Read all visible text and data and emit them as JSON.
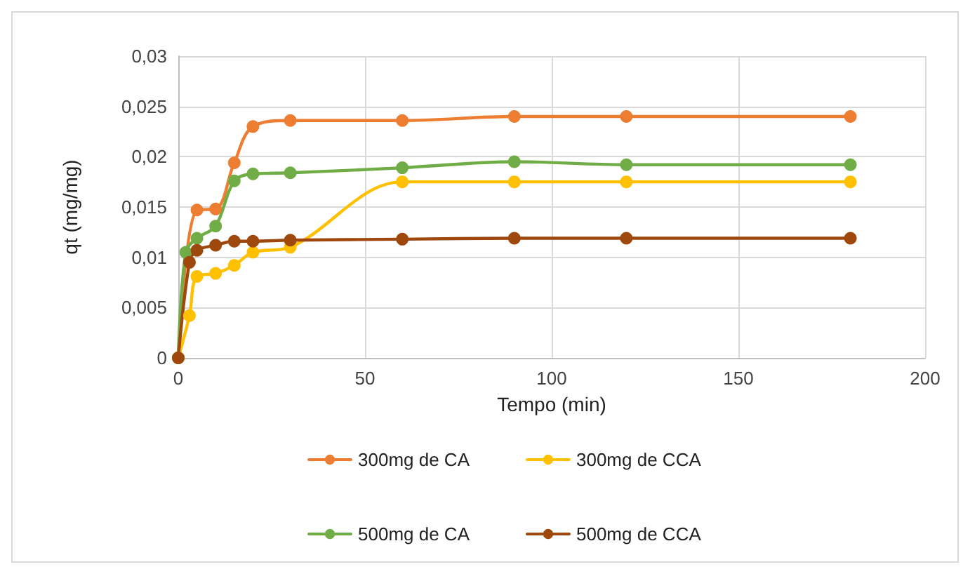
{
  "chart_data": {
    "type": "line",
    "xlabel": "Tempo (min)",
    "ylabel": "qt (mg/mg)",
    "xlim": [
      0,
      200
    ],
    "xticks": [
      0,
      50,
      100,
      150,
      200
    ],
    "ylim": [
      0,
      0.03
    ],
    "yticks": [
      {
        "value": 0,
        "label": "0"
      },
      {
        "value": 0.005,
        "label": "0,005"
      },
      {
        "value": 0.01,
        "label": "0,01"
      },
      {
        "value": 0.015,
        "label": "0,015"
      },
      {
        "value": 0.02,
        "label": "0,02"
      },
      {
        "value": 0.025,
        "label": "0,025"
      },
      {
        "value": 0.03,
        "label": "0,03"
      }
    ],
    "grid": true,
    "legend": "bottom",
    "marker": "circle",
    "line_style": "solid",
    "series": [
      {
        "name": "300mg de CA",
        "color": "#ed7d31",
        "x": [
          0,
          5,
          10,
          15,
          20,
          30,
          60,
          90,
          120,
          180
        ],
        "values": [
          0,
          0.0147,
          0.0148,
          0.0194,
          0.023,
          0.0236,
          0.0236,
          0.024,
          0.024,
          0.024
        ]
      },
      {
        "name": "300mg de CCA",
        "color": "#ffc000",
        "x": [
          0,
          3,
          5,
          10,
          15,
          20,
          30,
          60,
          90,
          120,
          180
        ],
        "values": [
          0,
          0.0042,
          0.0081,
          0.0084,
          0.0092,
          0.0105,
          0.011,
          0.0175,
          0.0175,
          0.0175,
          0.0175
        ]
      },
      {
        "name": "500mg de CA",
        "color": "#70ad47",
        "x": [
          0,
          2,
          5,
          10,
          15,
          20,
          30,
          60,
          90,
          120,
          180
        ],
        "values": [
          0,
          0.0105,
          0.0119,
          0.0131,
          0.0176,
          0.0183,
          0.0184,
          0.0189,
          0.0195,
          0.0192,
          0.0192
        ]
      },
      {
        "name": "500mg de CCA",
        "color": "#9e480e",
        "x": [
          0,
          3,
          5,
          10,
          15,
          20,
          30,
          60,
          90,
          120,
          180
        ],
        "values": [
          0,
          0.0095,
          0.0107,
          0.0112,
          0.0116,
          0.0116,
          0.0117,
          0.0118,
          0.0119,
          0.0119,
          0.0119
        ]
      }
    ]
  }
}
